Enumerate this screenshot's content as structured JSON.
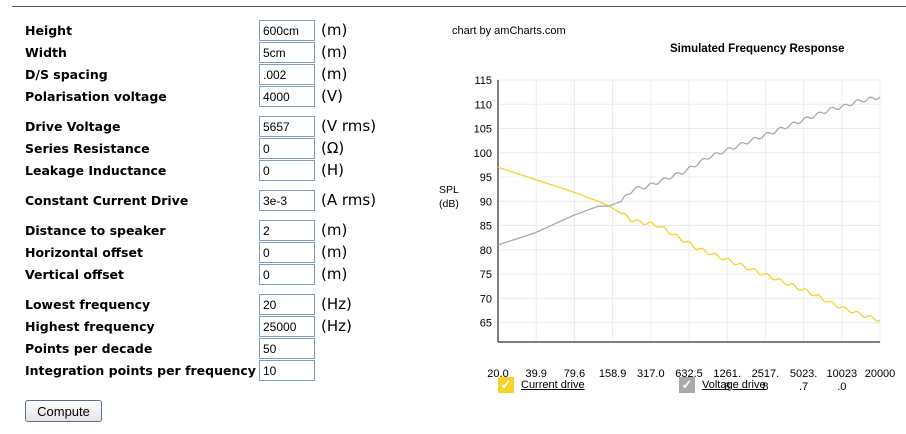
{
  "form": {
    "rows": [
      {
        "label": "Height",
        "value": "600cm",
        "unit": "(m)"
      },
      {
        "label": "Width",
        "value": "5cm",
        "unit": "(m)"
      },
      {
        "label": "D/S spacing",
        "value": ".002",
        "unit": "(m)"
      },
      {
        "label": "Polarisation voltage",
        "value": "4000",
        "unit": "(V)"
      },
      {
        "label": "Drive Voltage",
        "value": "5657",
        "unit": "(V rms)"
      },
      {
        "label": "Series Resistance",
        "value": "0",
        "unit": "(Ω)"
      },
      {
        "label": "Leakage Inductance",
        "value": "0",
        "unit": "(H)"
      },
      {
        "label": "Constant Current Drive",
        "value": "3e-3",
        "unit": "(A rms)"
      },
      {
        "label": "Distance to speaker",
        "value": "2",
        "unit": "(m)"
      },
      {
        "label": "Horizontal offset",
        "value": "0",
        "unit": "(m)"
      },
      {
        "label": "Vertical offset",
        "value": "0",
        "unit": "(m)"
      },
      {
        "label": "Lowest frequency",
        "value": "20",
        "unit": "(Hz)"
      },
      {
        "label": "Highest frequency",
        "value": "25000",
        "unit": "(Hz)"
      },
      {
        "label": "Points per decade",
        "value": "50",
        "unit": ""
      },
      {
        "label": "Integration points per frequency",
        "value": "10",
        "unit": ""
      }
    ],
    "compute_label": "Compute"
  },
  "chart": {
    "credit": "chart by amCharts.com",
    "colors": {
      "current": "#f5d327",
      "voltage": "#a9a9a9"
    },
    "legend": {
      "current_check": "✓",
      "voltage_check": "✓"
    }
  },
  "chart_data": {
    "type": "line",
    "title": "Simulated Frequency Response",
    "ylabel": "SPL\n(dB)",
    "xscale": "log",
    "ylim": [
      61,
      115
    ],
    "yticks": [
      115,
      110,
      105,
      100,
      95,
      90,
      85,
      80,
      75,
      70,
      65
    ],
    "xticks": [
      "20.0",
      "39.9",
      "79.6",
      "158.9",
      "317.0",
      "632.5",
      "1261.\n8",
      "2517.\n8",
      "5023.\n.7",
      "10023\n.0",
      "20000"
    ],
    "legend_position": "bottom",
    "grid": true,
    "series": [
      {
        "name": "Current drive",
        "x": [
          20,
          40,
          80,
          130,
          158.9,
          200,
          250,
          317,
          400,
          500,
          632.5,
          800,
          1000,
          1261.8,
          1600,
          2000,
          2517.8,
          3200,
          4000,
          5023.7,
          6300,
          8000,
          10023,
          12600,
          16000,
          20000,
          25000
        ],
        "y": [
          97,
          94.5,
          92,
          90,
          89,
          87.5,
          86,
          85.5,
          85,
          83.5,
          82,
          80.5,
          79.5,
          78.5,
          77.5,
          76.5,
          75.5,
          74.5,
          73.5,
          72.5,
          71.5,
          70.3,
          69,
          68,
          67,
          66.2,
          65.5
        ]
      },
      {
        "name": "Voltage drive",
        "x": [
          20,
          40,
          80,
          130,
          158.9,
          200,
          250,
          317,
          400,
          500,
          632.5,
          800,
          1000,
          1261.8,
          1600,
          2000,
          2517.8,
          3200,
          4000,
          5023.7,
          6300,
          8000,
          10023,
          12600,
          16000,
          20000,
          25000
        ],
        "y": [
          81,
          83.5,
          87,
          89,
          89,
          90,
          92.5,
          93,
          94,
          95,
          96,
          97.5,
          99,
          100,
          101,
          102,
          103,
          104,
          105,
          106,
          107,
          108,
          109,
          109.5,
          110.5,
          111,
          111.5
        ]
      }
    ]
  }
}
